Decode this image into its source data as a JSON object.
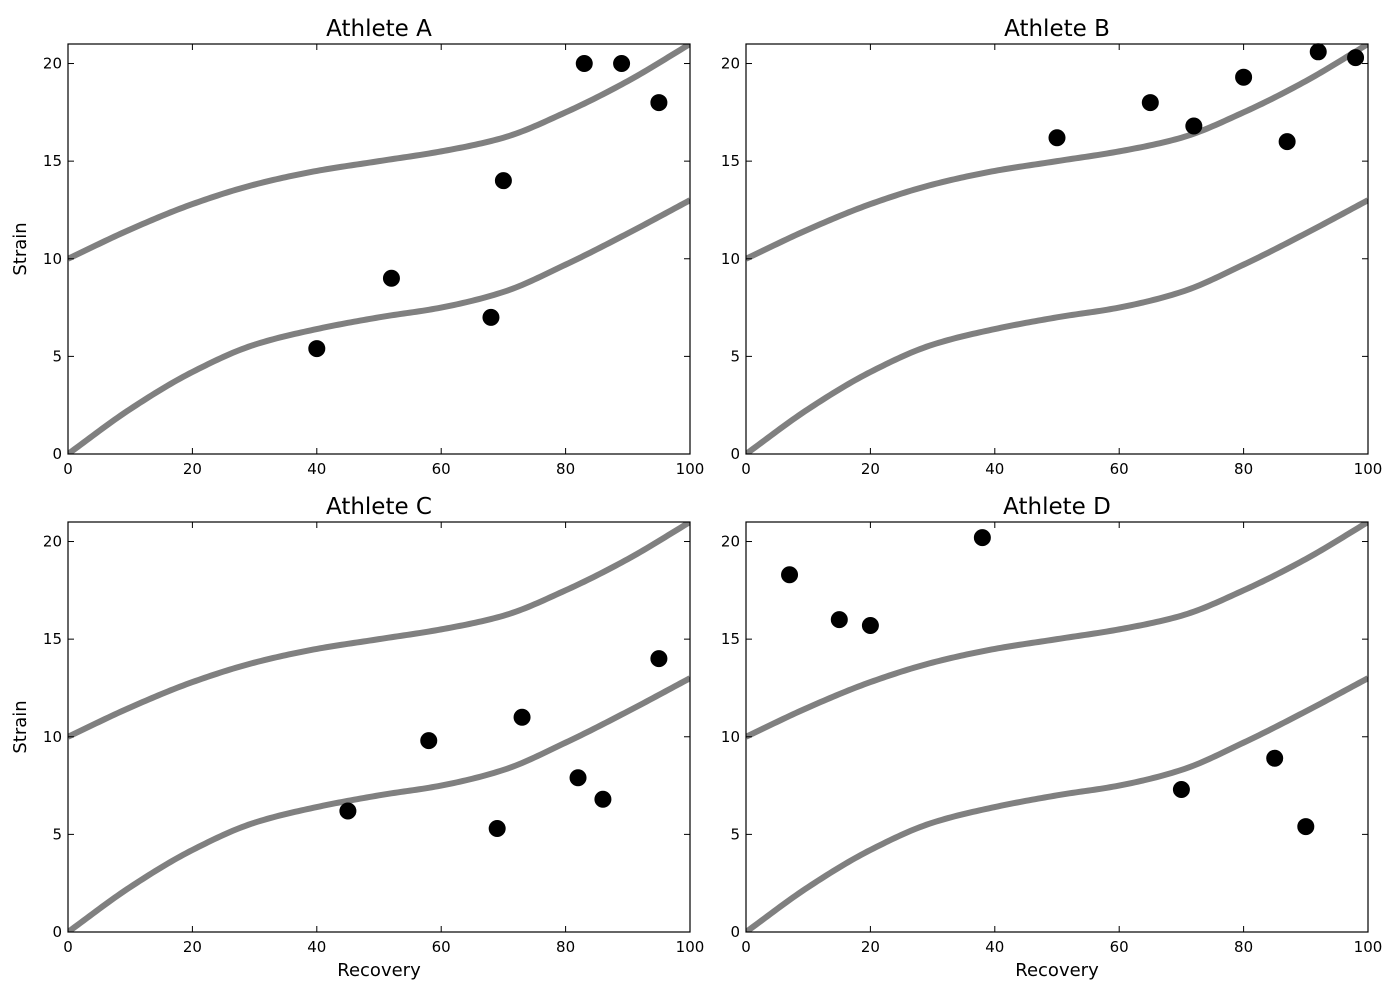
{
  "chart_data": [
    {
      "type": "scatter",
      "title": "Athlete A",
      "xlabel": "",
      "ylabel": "Strain",
      "xlim": [
        0,
        100
      ],
      "ylim": [
        0,
        21
      ],
      "xticks": [
        "0",
        "20",
        "40",
        "60",
        "80",
        "100"
      ],
      "yticks": [
        "0",
        "5",
        "10",
        "15",
        "20"
      ],
      "grid": false,
      "points": {
        "x": [
          40,
          52,
          68,
          70,
          83,
          89,
          95
        ],
        "y": [
          5.4,
          9,
          7,
          14,
          20,
          20,
          18
        ]
      }
    },
    {
      "type": "scatter",
      "title": "Athlete B",
      "xlabel": "",
      "ylabel": "",
      "xlim": [
        0,
        100
      ],
      "ylim": [
        0,
        21
      ],
      "xticks": [
        "0",
        "20",
        "40",
        "60",
        "80",
        "100"
      ],
      "yticks": [
        "0",
        "5",
        "10",
        "15",
        "20"
      ],
      "grid": false,
      "points": {
        "x": [
          50,
          65,
          72,
          80,
          87,
          92,
          98
        ],
        "y": [
          16.2,
          18,
          16.8,
          19.3,
          16,
          20.6,
          20.3
        ]
      }
    },
    {
      "type": "scatter",
      "title": "Athlete C",
      "xlabel": "Recovery",
      "ylabel": "Strain",
      "xlim": [
        0,
        100
      ],
      "ylim": [
        0,
        21
      ],
      "xticks": [
        "0",
        "20",
        "40",
        "60",
        "80",
        "100"
      ],
      "yticks": [
        "0",
        "5",
        "10",
        "15",
        "20"
      ],
      "grid": false,
      "points": {
        "x": [
          45,
          58,
          69,
          73,
          82,
          86,
          95
        ],
        "y": [
          6.2,
          9.8,
          5.3,
          11,
          7.9,
          6.8,
          14
        ]
      }
    },
    {
      "type": "scatter",
      "title": "Athlete D",
      "xlabel": "Recovery",
      "ylabel": "",
      "xlim": [
        0,
        100
      ],
      "ylim": [
        0,
        21
      ],
      "xticks": [
        "0",
        "20",
        "40",
        "60",
        "80",
        "100"
      ],
      "yticks": [
        "0",
        "5",
        "10",
        "15",
        "20"
      ],
      "grid": false,
      "points": {
        "x": [
          7,
          15,
          20,
          38,
          70,
          85,
          90
        ],
        "y": [
          18.3,
          16,
          15.7,
          20.2,
          7.3,
          8.9,
          5.4
        ]
      }
    }
  ],
  "reference_curves": {
    "x": [
      0,
      10,
      20,
      30,
      40,
      50,
      60,
      70,
      80,
      90,
      100
    ],
    "upper": [
      10,
      11.5,
      12.8,
      13.8,
      14.5,
      15,
      15.5,
      16.2,
      17.5,
      19.1,
      21
    ],
    "lower": [
      0,
      2.3,
      4.2,
      5.6,
      6.4,
      7,
      7.5,
      8.3,
      9.7,
      11.3,
      13
    ],
    "color": "#808080"
  },
  "marker_color": "#000000"
}
